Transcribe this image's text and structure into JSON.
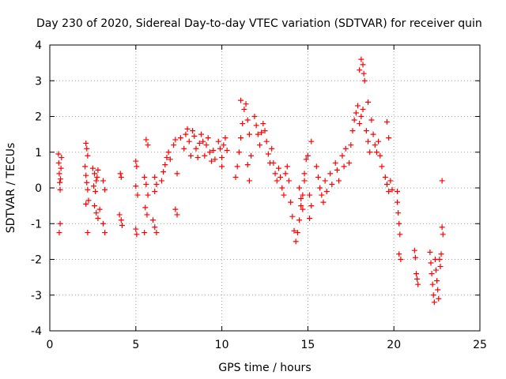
{
  "chart_data": {
    "type": "scatter",
    "title": "Day 230 of 2020, Sidereal Day-to-day VTEC variation (SDTVAR) for receiver quin",
    "xlabel": "GPS time / hours",
    "ylabel": "SDTVAR / TECUs",
    "xlim": [
      0,
      25
    ],
    "ylim": [
      -4,
      4
    ],
    "xticks": [
      0,
      5,
      10,
      15,
      20,
      25
    ],
    "yticks": [
      -4,
      -3,
      -2,
      -1,
      0,
      1,
      2,
      3,
      4
    ],
    "grid": true,
    "marker": "+",
    "color": "#ff0000",
    "series": [
      {
        "name": "SDTVAR",
        "points": [
          [
            0.5,
            0.95
          ],
          [
            0.52,
            0.7
          ],
          [
            0.55,
            0.4
          ],
          [
            0.58,
            0.15
          ],
          [
            0.6,
            -0.05
          ],
          [
            0.62,
            0.25
          ],
          [
            0.65,
            0.55
          ],
          [
            0.68,
            0.85
          ],
          [
            0.55,
            -1.25
          ],
          [
            0.6,
            -1.0
          ],
          [
            2.1,
            1.25
          ],
          [
            2.15,
            1.1
          ],
          [
            2.2,
            0.9
          ],
          [
            2.05,
            0.6
          ],
          [
            2.1,
            0.35
          ],
          [
            2.15,
            0.15
          ],
          [
            2.2,
            -0.05
          ],
          [
            2.25,
            -0.35
          ],
          [
            2.1,
            -0.45
          ],
          [
            2.2,
            -1.25
          ],
          [
            2.5,
            0.55
          ],
          [
            2.6,
            0.4
          ],
          [
            2.7,
            0.2
          ],
          [
            2.55,
            0.05
          ],
          [
            2.65,
            -0.1
          ],
          [
            2.75,
            0.3
          ],
          [
            2.8,
            0.5
          ],
          [
            2.6,
            -0.5
          ],
          [
            2.7,
            -0.7
          ],
          [
            2.8,
            -0.85
          ],
          [
            2.9,
            -0.6
          ],
          [
            3.1,
            0.2
          ],
          [
            3.2,
            -0.05
          ],
          [
            3.1,
            -1.0
          ],
          [
            3.2,
            -1.25
          ],
          [
            4.1,
            0.4
          ],
          [
            4.15,
            0.3
          ],
          [
            4.05,
            -0.75
          ],
          [
            4.15,
            -0.9
          ],
          [
            4.2,
            -1.05
          ],
          [
            5.0,
            0.75
          ],
          [
            5.05,
            0.6
          ],
          [
            5.0,
            0.05
          ],
          [
            5.1,
            -0.2
          ],
          [
            5.0,
            -1.15
          ],
          [
            5.05,
            -1.3
          ],
          [
            5.6,
            1.35
          ],
          [
            5.7,
            1.2
          ],
          [
            5.5,
            0.3
          ],
          [
            5.6,
            0.1
          ],
          [
            5.7,
            -0.2
          ],
          [
            5.55,
            -0.55
          ],
          [
            5.65,
            -0.75
          ],
          [
            5.5,
            -1.25
          ],
          [
            6.1,
            0.3
          ],
          [
            6.2,
            0.1
          ],
          [
            6.1,
            -0.1
          ],
          [
            6.0,
            -0.9
          ],
          [
            6.1,
            -1.1
          ],
          [
            6.2,
            -1.25
          ],
          [
            6.5,
            0.2
          ],
          [
            6.6,
            0.45
          ],
          [
            6.7,
            0.65
          ],
          [
            6.8,
            0.85
          ],
          [
            6.9,
            1.0
          ],
          [
            7.0,
            0.8
          ],
          [
            7.2,
            1.2
          ],
          [
            7.3,
            1.35
          ],
          [
            7.4,
            0.4
          ],
          [
            7.3,
            -0.6
          ],
          [
            7.4,
            -0.75
          ],
          [
            7.6,
            1.4
          ],
          [
            7.8,
            1.1
          ],
          [
            7.9,
            1.5
          ],
          [
            8.0,
            1.65
          ],
          [
            8.1,
            1.3
          ],
          [
            8.2,
            0.9
          ],
          [
            8.3,
            1.6
          ],
          [
            8.4,
            1.45
          ],
          [
            8.5,
            1.1
          ],
          [
            8.6,
            0.85
          ],
          [
            8.7,
            1.25
          ],
          [
            8.8,
            1.5
          ],
          [
            8.9,
            1.3
          ],
          [
            9.0,
            0.9
          ],
          [
            9.1,
            1.2
          ],
          [
            9.2,
            1.4
          ],
          [
            9.3,
            1.0
          ],
          [
            9.4,
            0.75
          ],
          [
            9.5,
            1.05
          ],
          [
            9.6,
            0.8
          ],
          [
            9.8,
            1.3
          ],
          [
            9.9,
            1.1
          ],
          [
            10.0,
            0.85
          ],
          [
            10.1,
            1.2
          ],
          [
            10.2,
            1.4
          ],
          [
            10.3,
            1.05
          ],
          [
            10.0,
            0.6
          ],
          [
            10.8,
            0.3
          ],
          [
            10.9,
            0.6
          ],
          [
            11.0,
            1.0
          ],
          [
            11.1,
            1.4
          ],
          [
            11.2,
            1.8
          ],
          [
            11.3,
            2.2
          ],
          [
            11.1,
            2.45
          ],
          [
            11.4,
            2.35
          ],
          [
            11.5,
            1.9
          ],
          [
            11.6,
            1.5
          ],
          [
            11.7,
            0.9
          ],
          [
            11.5,
            0.65
          ],
          [
            11.6,
            0.2
          ],
          [
            11.9,
            2.0
          ],
          [
            12.0,
            1.75
          ],
          [
            12.1,
            1.5
          ],
          [
            12.2,
            1.2
          ],
          [
            12.3,
            1.55
          ],
          [
            12.4,
            1.8
          ],
          [
            12.5,
            1.6
          ],
          [
            12.6,
            1.3
          ],
          [
            12.7,
            0.95
          ],
          [
            12.8,
            0.7
          ],
          [
            12.9,
            1.1
          ],
          [
            13.0,
            0.7
          ],
          [
            13.1,
            0.4
          ],
          [
            13.2,
            0.2
          ],
          [
            13.3,
            0.55
          ],
          [
            13.4,
            0.3
          ],
          [
            13.5,
            0.0
          ],
          [
            13.6,
            -0.2
          ],
          [
            13.7,
            0.4
          ],
          [
            13.8,
            0.6
          ],
          [
            13.9,
            0.2
          ],
          [
            14.0,
            -0.4
          ],
          [
            14.1,
            -0.8
          ],
          [
            14.2,
            -1.2
          ],
          [
            14.3,
            -1.5
          ],
          [
            14.4,
            -1.25
          ],
          [
            14.5,
            -0.9
          ],
          [
            14.6,
            -0.5
          ],
          [
            14.7,
            -0.2
          ],
          [
            14.8,
            0.4
          ],
          [
            14.9,
            0.8
          ],
          [
            14.5,
            0.0
          ],
          [
            14.6,
            -0.3
          ],
          [
            14.7,
            -0.6
          ],
          [
            14.8,
            0.2
          ],
          [
            15.0,
            0.9
          ],
          [
            15.1,
            -0.2
          ],
          [
            15.2,
            -0.5
          ],
          [
            15.1,
            -0.85
          ],
          [
            15.2,
            1.3
          ],
          [
            15.5,
            0.6
          ],
          [
            15.6,
            0.3
          ],
          [
            15.7,
            0.0
          ],
          [
            15.8,
            -0.2
          ],
          [
            15.9,
            -0.4
          ],
          [
            16.0,
            0.2
          ],
          [
            16.1,
            -0.1
          ],
          [
            16.3,
            0.4
          ],
          [
            16.4,
            0.1
          ],
          [
            16.6,
            0.7
          ],
          [
            16.7,
            0.5
          ],
          [
            16.8,
            0.2
          ],
          [
            17.0,
            0.9
          ],
          [
            17.1,
            0.6
          ],
          [
            17.2,
            1.1
          ],
          [
            17.4,
            0.7
          ],
          [
            17.5,
            1.2
          ],
          [
            17.6,
            1.6
          ],
          [
            17.7,
            1.9
          ],
          [
            17.8,
            2.1
          ],
          [
            17.9,
            2.3
          ],
          [
            18.0,
            1.8
          ],
          [
            18.1,
            2.0
          ],
          [
            18.2,
            2.2
          ],
          [
            18.0,
            3.3
          ],
          [
            18.1,
            3.6
          ],
          [
            18.2,
            3.45
          ],
          [
            18.25,
            3.2
          ],
          [
            18.3,
            3.0
          ],
          [
            18.4,
            1.6
          ],
          [
            18.5,
            1.3
          ],
          [
            18.6,
            1.0
          ],
          [
            18.5,
            2.4
          ],
          [
            18.7,
            1.9
          ],
          [
            18.8,
            1.5
          ],
          [
            18.9,
            1.2
          ],
          [
            19.0,
            1.0
          ],
          [
            19.1,
            1.3
          ],
          [
            19.2,
            0.9
          ],
          [
            19.3,
            0.6
          ],
          [
            19.5,
            0.3
          ],
          [
            19.6,
            0.1
          ],
          [
            19.7,
            -0.1
          ],
          [
            19.6,
            1.85
          ],
          [
            19.7,
            1.4
          ],
          [
            19.8,
            0.2
          ],
          [
            19.9,
            -0.05
          ],
          [
            20.2,
            -0.4
          ],
          [
            20.25,
            -0.7
          ],
          [
            20.3,
            -1.0
          ],
          [
            20.35,
            -1.3
          ],
          [
            20.2,
            -0.1
          ],
          [
            20.3,
            -1.85
          ],
          [
            20.4,
            -2.0
          ],
          [
            21.2,
            -1.75
          ],
          [
            21.25,
            -1.95
          ],
          [
            21.3,
            -2.4
          ],
          [
            21.35,
            -2.55
          ],
          [
            21.4,
            -2.7
          ],
          [
            22.1,
            -1.8
          ],
          [
            22.15,
            -2.1
          ],
          [
            22.2,
            -2.4
          ],
          [
            22.25,
            -2.7
          ],
          [
            22.3,
            -3.0
          ],
          [
            22.35,
            -3.2
          ],
          [
            22.4,
            -2.0
          ],
          [
            22.45,
            -2.3
          ],
          [
            22.5,
            -2.6
          ],
          [
            22.55,
            -2.85
          ],
          [
            22.6,
            -3.1
          ],
          [
            22.65,
            -2.0
          ],
          [
            22.7,
            -2.2
          ],
          [
            22.8,
            0.2
          ],
          [
            22.8,
            -1.1
          ],
          [
            22.85,
            -1.3
          ],
          [
            22.75,
            -1.85
          ]
        ]
      }
    ]
  }
}
